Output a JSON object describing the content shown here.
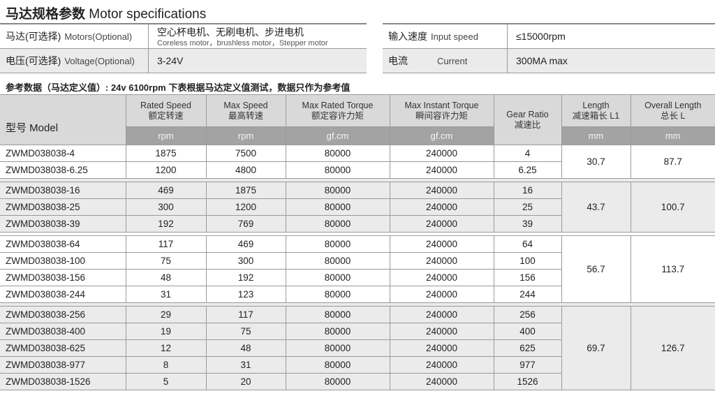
{
  "title": {
    "cn": "马达规格参数",
    "en": "Motor specifications"
  },
  "spec_left": [
    {
      "label_cn": "马达(可选择)",
      "label_en": "Motors(Optional)",
      "value": "空心杯电机、无刷电机、步进电机",
      "value_sub": "Coreless motor，brushless motor，Stepper motor"
    },
    {
      "label_cn": "电压(可选择)",
      "label_en": "Voltage(Optional)",
      "value": "3-24V",
      "value_sub": ""
    }
  ],
  "spec_right": [
    {
      "label_cn": "输入速度",
      "label_en": "Input speed",
      "value": "≤15000rpm"
    },
    {
      "label_cn": "电流",
      "label_en": "Current",
      "value": "300MA max"
    }
  ],
  "note": "参考数据（马达定义值）: 24v  6100rpm    下表根据马达定义值测试，数据只作为参考值",
  "table": {
    "model_header": "型号 Model",
    "headers": [
      {
        "en": "Rated Speed",
        "cn": "额定转速",
        "unit": "rpm"
      },
      {
        "en": "Max Speed",
        "cn": "最高转速",
        "unit": "rpm"
      },
      {
        "en": "Max Rated Torque",
        "cn": "额定容许力矩",
        "unit": "gf.cm"
      },
      {
        "en": "Max Instant Torque",
        "cn": "瞬间容许力矩",
        "unit": "gf.cm"
      },
      {
        "en": "Gear Ratio",
        "cn": "减速比",
        "unit": ""
      },
      {
        "en": "Length",
        "cn": "减速箱长 L1",
        "unit": "mm"
      },
      {
        "en": "Overall Length",
        "cn": "总长 L",
        "unit": "mm"
      }
    ],
    "groups": [
      {
        "length": "30.7",
        "overall": "87.7",
        "rows": [
          [
            "ZWMD038038-4",
            "1875",
            "7500",
            "80000",
            "240000",
            "4"
          ],
          [
            "ZWMD038038-6.25",
            "1200",
            "4800",
            "80000",
            "240000",
            "6.25"
          ]
        ]
      },
      {
        "length": "43.7",
        "overall": "100.7",
        "rows": [
          [
            "ZWMD038038-16",
            "469",
            "1875",
            "80000",
            "240000",
            "16"
          ],
          [
            "ZWMD038038-25",
            "300",
            "1200",
            "80000",
            "240000",
            "25"
          ],
          [
            "ZWMD038038-39",
            "192",
            "769",
            "80000",
            "240000",
            "39"
          ]
        ]
      },
      {
        "length": "56.7",
        "overall": "113.7",
        "rows": [
          [
            "ZWMD038038-64",
            "117",
            "469",
            "80000",
            "240000",
            "64"
          ],
          [
            "ZWMD038038-100",
            "75",
            "300",
            "80000",
            "240000",
            "100"
          ],
          [
            "ZWMD038038-156",
            "48",
            "192",
            "80000",
            "240000",
            "156"
          ],
          [
            "ZWMD038038-244",
            "31",
            "123",
            "80000",
            "240000",
            "244"
          ]
        ]
      },
      {
        "length": "69.7",
        "overall": "126.7",
        "rows": [
          [
            "ZWMD038038-256",
            "29",
            "117",
            "80000",
            "240000",
            "256"
          ],
          [
            "ZWMD038038-400",
            "19",
            "75",
            "80000",
            "240000",
            "400"
          ],
          [
            "ZWMD038038-625",
            "12",
            "48",
            "80000",
            "240000",
            "625"
          ],
          [
            "ZWMD038038-977",
            "8",
            "31",
            "80000",
            "240000",
            "977"
          ],
          [
            "ZWMD038038-1526",
            "5",
            "20",
            "80000",
            "240000",
            "1526"
          ]
        ]
      }
    ]
  }
}
